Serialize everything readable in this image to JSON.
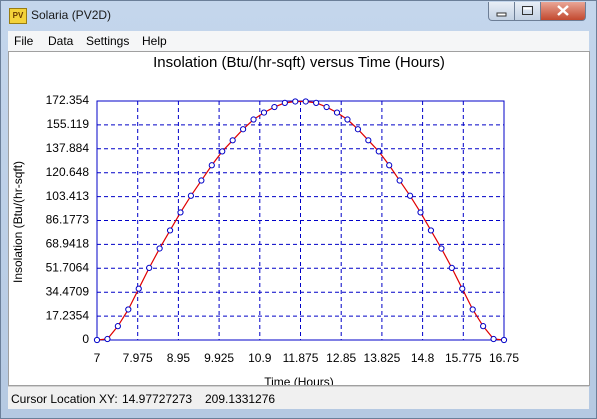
{
  "window": {
    "title": "Solaria (PV2D)",
    "icon": "PV"
  },
  "menu": [
    "File",
    "Data",
    "Settings",
    "Help"
  ],
  "chart_data": {
    "type": "line",
    "title": "Insolation (Btu/(hr-sqft) versus Time (Hours)",
    "x_label": "Time (Hours)",
    "y_label": "Insolation (Btu/(hr-sqft)",
    "x": [
      7,
      7.25,
      7.5,
      7.75,
      8,
      8.25,
      8.5,
      8.75,
      9,
      9.25,
      9.5,
      9.75,
      10,
      10.25,
      10.5,
      10.75,
      11,
      11.25,
      11.5,
      11.75,
      12,
      12.25,
      12.5,
      12.75,
      13,
      13.25,
      13.5,
      13.75,
      14,
      14.25,
      14.5,
      14.75,
      15,
      15.25,
      15.5,
      15.75,
      16,
      16.25,
      16.5,
      16.75
    ],
    "series": [
      {
        "color": "#e00000",
        "marker_color": "#0000c8",
        "values": [
          0,
          0.7,
          10,
          22,
          37,
          52,
          66,
          79,
          92,
          104,
          115,
          126,
          136,
          144,
          152,
          159,
          164,
          168,
          171,
          172,
          172,
          171,
          168,
          164,
          159,
          152,
          144,
          136,
          126,
          115,
          104,
          92,
          79,
          66,
          52,
          37,
          22,
          10,
          0.7,
          0
        ]
      }
    ],
    "xlim": [
      7,
      16.75
    ],
    "ylim": [
      0,
      172.354
    ],
    "xticks": [
      7,
      7.975,
      8.95,
      9.925,
      10.9,
      11.875,
      12.85,
      13.825,
      14.8,
      15.775,
      16.75
    ],
    "yticks": [
      0,
      17.2354,
      34.4709,
      51.7064,
      68.9418,
      86.1773,
      103.413,
      120.648,
      137.884,
      155.119,
      172.354
    ],
    "grid": true,
    "grid_color": "#0000c8"
  },
  "status": {
    "label": "Cursor Location XY:",
    "x": "14.97727273",
    "y": "209.1331276"
  }
}
